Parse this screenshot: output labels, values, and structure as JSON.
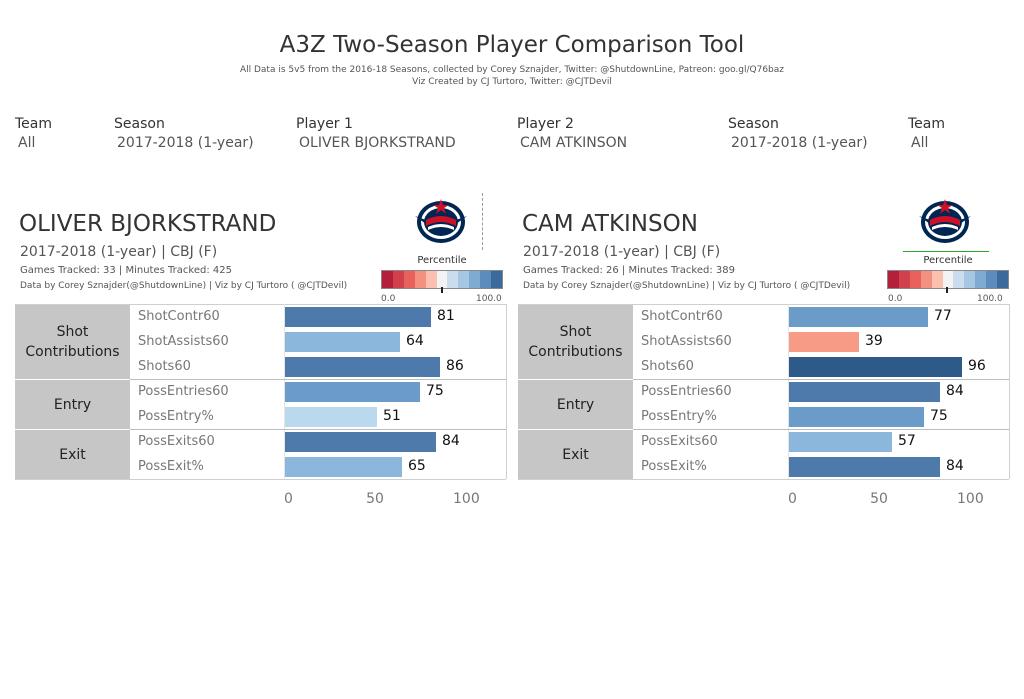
{
  "header": {
    "title": "A3Z Two-Season Player Comparison Tool",
    "subtitle1": "All Data is 5v5 from the 2016-18 Seasons, collected by Corey Sznajder, Twitter: @ShutdownLine, Patreon: goo.gl/Q76baz",
    "subtitle2": "Viz Created by CJ Turtoro, Twitter: @CJTDevil"
  },
  "filters": [
    {
      "label": "Team",
      "value": "All"
    },
    {
      "label": "Season",
      "value": "2017-2018 (1-year)"
    },
    {
      "label": "Player 1",
      "value": "OLIVER BJORKSTRAND"
    },
    {
      "label": "Player 2",
      "value": "CAM ATKINSON"
    },
    {
      "label": "Season",
      "value": "2017-2018 (1-year)"
    },
    {
      "label": "Team",
      "value": "All"
    }
  ],
  "legend": {
    "title": "Percentile",
    "min_label": "0.0",
    "max_label": "100.0",
    "colors": [
      "#b41f3a",
      "#d0414b",
      "#e8615d",
      "#f4907f",
      "#fbc0b0",
      "#f3f3f3",
      "#c9ddee",
      "#a5c7e3",
      "#7faad1",
      "#5b8cbd",
      "#3d6a9c"
    ]
  },
  "players": [
    {
      "name": "OLIVER BJORKSTRAND",
      "season_team": "2017-2018 (1-year) | CBJ (F)",
      "games_minutes": "Games Tracked: 33  | Minutes Tracked: 425",
      "credit": "Data by Corey Sznajder(@ShutdownLine) | Viz by CJ Turtoro ( @CJTDevil)",
      "logo_icon": "blue-jackets-logo-icon"
    },
    {
      "name": "CAM ATKINSON",
      "season_team": "2017-2018 (1-year) | CBJ (F)",
      "games_minutes": "Games Tracked: 26  | Minutes Tracked: 389",
      "credit": "Data by Corey Sznajder(@ShutdownLine) | Viz by CJ Turtoro ( @CJTDevil)",
      "logo_icon": "blue-jackets-logo-icon"
    }
  ],
  "chart_data": [
    {
      "type": "bar",
      "orientation": "horizontal",
      "player": "OLIVER BJORKSTRAND",
      "groups": [
        {
          "name": "Shot\nContributions",
          "metrics": [
            "ShotContr60",
            "ShotAssists60",
            "Shots60"
          ]
        },
        {
          "name": "Entry",
          "metrics": [
            "PossEntries60",
            "PossEntry%"
          ]
        },
        {
          "name": "Exit",
          "metrics": [
            "PossExits60",
            "PossExit%"
          ]
        }
      ],
      "categories": [
        "ShotContr60",
        "ShotAssists60",
        "Shots60",
        "PossEntries60",
        "PossEntry%",
        "PossExits60",
        "PossExit%"
      ],
      "values": [
        81,
        64,
        86,
        75,
        51,
        84,
        65
      ],
      "xlim": [
        0,
        100
      ],
      "x_ticks": [
        "0",
        "50",
        "100"
      ],
      "color_scale": "percentile"
    },
    {
      "type": "bar",
      "orientation": "horizontal",
      "player": "CAM ATKINSON",
      "groups": [
        {
          "name": "Shot\nContributions",
          "metrics": [
            "ShotContr60",
            "ShotAssists60",
            "Shots60"
          ]
        },
        {
          "name": "Entry",
          "metrics": [
            "PossEntries60",
            "PossEntry%"
          ]
        },
        {
          "name": "Exit",
          "metrics": [
            "PossExits60",
            "PossExit%"
          ]
        }
      ],
      "categories": [
        "ShotContr60",
        "ShotAssists60",
        "Shots60",
        "PossEntries60",
        "PossEntry%",
        "PossExits60",
        "PossExit%"
      ],
      "values": [
        77,
        39,
        96,
        84,
        75,
        57,
        84
      ],
      "xlim": [
        0,
        100
      ],
      "x_ticks": [
        "0",
        "50",
        "100"
      ],
      "color_scale": "percentile"
    }
  ]
}
